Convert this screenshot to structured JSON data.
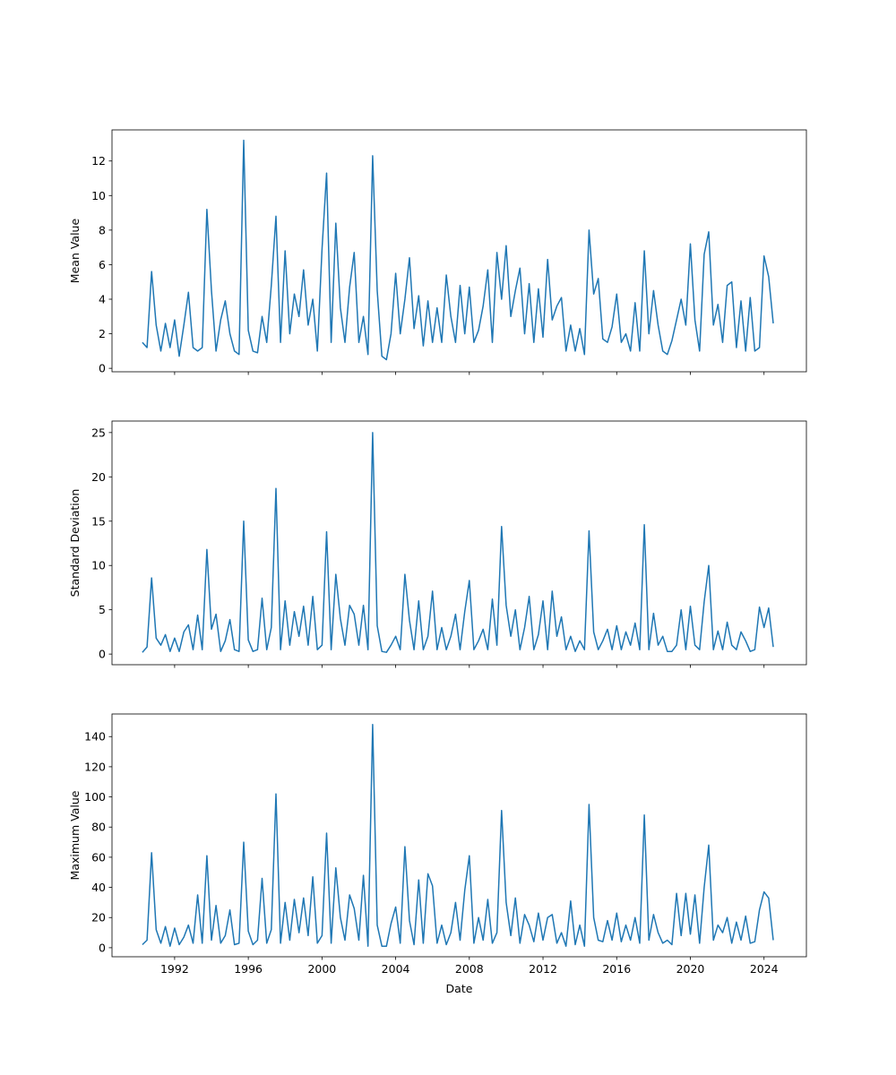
{
  "chart_data": [
    {
      "type": "line",
      "ylabel": "Mean Value",
      "xlabel": "",
      "ylim": [
        -0.2,
        13.8
      ],
      "yticks": [
        0,
        2,
        4,
        6,
        8,
        10,
        12
      ],
      "color": "#1f77b4",
      "x_start": 1990.25,
      "x_step": 0.25,
      "values": [
        1.5,
        1.2,
        5.6,
        2.5,
        1.0,
        2.6,
        1.2,
        2.8,
        0.7,
        2.5,
        4.4,
        1.2,
        1.0,
        1.2,
        9.2,
        4.5,
        1.0,
        2.8,
        3.9,
        2.0,
        1.0,
        0.8,
        13.2,
        2.2,
        1.0,
        0.9,
        3.0,
        1.5,
        4.8,
        8.8,
        1.5,
        6.8,
        2.0,
        4.3,
        3.0,
        5.7,
        2.5,
        4.0,
        1.0,
        6.9,
        11.3,
        1.5,
        8.4,
        3.5,
        1.5,
        4.7,
        6.7,
        1.5,
        3.0,
        0.8,
        12.3,
        4.5,
        0.7,
        0.5,
        2.0,
        5.5,
        2.0,
        4.0,
        6.4,
        2.3,
        4.2,
        1.3,
        3.9,
        1.5,
        3.5,
        1.5,
        5.4,
        3.0,
        1.5,
        4.8,
        2.0,
        4.7,
        1.5,
        2.2,
        3.6,
        5.7,
        1.5,
        6.7,
        4.0,
        7.1,
        3.0,
        4.5,
        5.8,
        2.0,
        4.9,
        1.5,
        4.6,
        1.8,
        6.3,
        2.8,
        3.6,
        4.1,
        1.0,
        2.5,
        1.0,
        2.3,
        0.8,
        8.0,
        4.3,
        5.2,
        1.7,
        1.5,
        2.4,
        4.3,
        1.5,
        2.0,
        1.0,
        3.8,
        1.0,
        6.8,
        2.0,
        4.5,
        2.5,
        1.0,
        0.8,
        1.6,
        2.8,
        4.0,
        2.5,
        7.2,
        2.8,
        1.0,
        6.6,
        7.9,
        2.5,
        3.7,
        1.5,
        4.8,
        5.0,
        1.2,
        3.9,
        1.0,
        4.1,
        1.0,
        1.2,
        6.5,
        5.3,
        2.6
      ]
    },
    {
      "type": "line",
      "ylabel": "Standard Deviation",
      "xlabel": "",
      "ylim": [
        -1.2,
        26.3
      ],
      "yticks": [
        0,
        5,
        10,
        15,
        20,
        25
      ],
      "color": "#1f77b4",
      "x_start": 1990.25,
      "x_step": 0.25,
      "values": [
        0.2,
        0.8,
        8.6,
        1.8,
        1.0,
        2.2,
        0.3,
        1.8,
        0.3,
        2.5,
        3.3,
        0.5,
        4.4,
        0.5,
        11.8,
        2.8,
        4.5,
        0.3,
        1.5,
        3.9,
        0.5,
        0.3,
        15.0,
        1.6,
        0.3,
        0.5,
        6.3,
        0.5,
        3.0,
        18.7,
        0.5,
        6.0,
        1.0,
        4.8,
        2.0,
        5.4,
        1.0,
        6.5,
        0.5,
        1.0,
        13.8,
        0.5,
        9.0,
        4.0,
        1.0,
        5.5,
        4.5,
        1.0,
        5.5,
        0.5,
        25.0,
        3.2,
        0.3,
        0.2,
        1.0,
        2.0,
        0.5,
        9.0,
        3.8,
        0.5,
        6.0,
        0.5,
        2.0,
        7.1,
        0.5,
        3.0,
        0.5,
        2.0,
        4.5,
        0.5,
        4.8,
        8.3,
        0.5,
        1.5,
        2.8,
        0.5,
        6.2,
        1.0,
        14.4,
        5.5,
        2.0,
        5.0,
        0.5,
        3.0,
        6.5,
        0.5,
        2.2,
        6.0,
        0.5,
        7.1,
        2.0,
        4.2,
        0.5,
        2.0,
        0.3,
        1.5,
        0.5,
        13.9,
        2.5,
        0.5,
        1.5,
        2.8,
        0.5,
        3.2,
        0.5,
        2.5,
        1.0,
        3.5,
        0.5,
        14.6,
        0.5,
        4.6,
        1.0,
        2.0,
        0.3,
        0.3,
        1.0,
        5.0,
        0.5,
        5.4,
        1.0,
        0.5,
        5.9,
        10.0,
        0.5,
        2.6,
        0.5,
        3.6,
        1.0,
        0.5,
        2.5,
        1.5,
        0.3,
        0.5,
        5.3,
        3.0,
        5.2,
        0.8
      ]
    },
    {
      "type": "line",
      "ylabel": "Maximum Value",
      "xlabel": "Date",
      "ylim": [
        -6,
        155
      ],
      "yticks": [
        0,
        20,
        40,
        60,
        80,
        100,
        120,
        140
      ],
      "xticks": [
        "1992",
        "1996",
        "2000",
        "2004",
        "2008",
        "2012",
        "2016",
        "2020",
        "2024"
      ],
      "xlim": [
        1988.6,
        2026.3
      ],
      "color": "#1f77b4",
      "x_start": 1990.25,
      "x_step": 0.25,
      "values": [
        2,
        5,
        63,
        12,
        3,
        14,
        1,
        13,
        2,
        7,
        15,
        3,
        35,
        3,
        61,
        5,
        28,
        3,
        8,
        25,
        2,
        3,
        70,
        11,
        2,
        5,
        46,
        3,
        12,
        102,
        3,
        30,
        5,
        32,
        10,
        33,
        8,
        47,
        3,
        8,
        76,
        3,
        53,
        20,
        5,
        35,
        26,
        5,
        48,
        1,
        148,
        15,
        1,
        1,
        16,
        27,
        3,
        67,
        18,
        2,
        45,
        3,
        49,
        41,
        3,
        15,
        2,
        10,
        30,
        5,
        38,
        61,
        3,
        20,
        5,
        32,
        3,
        10,
        91,
        30,
        8,
        33,
        3,
        22,
        15,
        4,
        23,
        5,
        20,
        22,
        3,
        10,
        1,
        31,
        2,
        15,
        1,
        95,
        20,
        5,
        4,
        18,
        5,
        23,
        4,
        15,
        5,
        20,
        3,
        88,
        5,
        22,
        10,
        3,
        5,
        2,
        36,
        8,
        36,
        9,
        35,
        3,
        40,
        68,
        5,
        15,
        10,
        20,
        3,
        17,
        5,
        21,
        3,
        4,
        25,
        37,
        33,
        5
      ]
    }
  ]
}
